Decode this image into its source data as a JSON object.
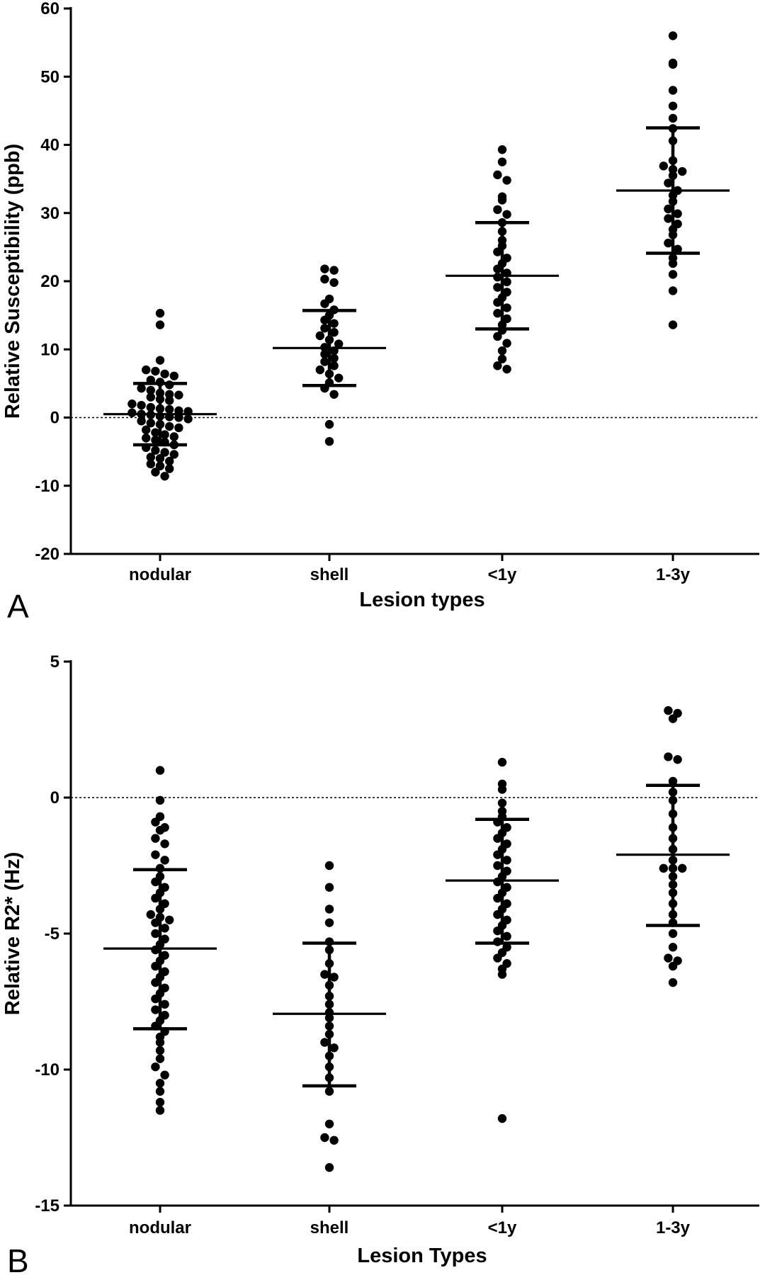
{
  "chart_data": [
    {
      "type": "scatter",
      "panel_label": "A",
      "xlabel": "Lesion types",
      "ylabel": "Relative Susceptibility (ppb)",
      "categories": [
        "nodular",
        "shell",
        "<1y",
        "1-3y"
      ],
      "ylim": [
        -20,
        60
      ],
      "yticks": [
        "60",
        "50",
        "40",
        "30",
        "20",
        "10",
        "0",
        "-10",
        "-20"
      ],
      "reference_line": 0,
      "series": [
        {
          "category": "nodular",
          "mean": 0.5,
          "sd_upper": 5.0,
          "sd_lower": -4.0,
          "points": [
            15.3,
            13.6,
            8.4,
            7.0,
            6.8,
            6.4,
            6.1,
            5.5,
            5.2,
            4.8,
            4.3,
            4.0,
            3.6,
            3.4,
            3.3,
            3.0,
            2.7,
            2.5,
            2.0,
            1.8,
            1.5,
            1.3,
            1.2,
            1.0,
            0.9,
            0.7,
            0.5,
            0.4,
            0.2,
            0.1,
            0.0,
            -0.2,
            -0.5,
            -0.8,
            -1.0,
            -1.3,
            -1.5,
            -1.8,
            -2.2,
            -2.5,
            -2.8,
            -3.0,
            -3.3,
            -3.6,
            -4.0,
            -4.4,
            -4.8,
            -5.1,
            -5.4,
            -5.8,
            -6.0,
            -6.4,
            -6.8,
            -7.1,
            -7.5,
            -8.0,
            -8.6
          ]
        },
        {
          "category": "shell",
          "mean": 10.2,
          "sd_upper": 15.7,
          "sd_lower": 4.7,
          "points": [
            21.8,
            21.6,
            20.3,
            19.8,
            17.4,
            16.7,
            15.8,
            15.0,
            14.3,
            13.8,
            13.1,
            12.5,
            12.0,
            11.4,
            10.8,
            10.3,
            9.8,
            9.3,
            8.7,
            8.2,
            7.6,
            7.0,
            6.4,
            5.8,
            5.1,
            4.3,
            3.4,
            -1.0,
            -3.5
          ]
        },
        {
          "category": "<1y",
          "mean": 20.8,
          "sd_upper": 28.6,
          "sd_lower": 13.0,
          "points": [
            39.3,
            37.5,
            35.6,
            34.8,
            32.4,
            31.9,
            30.5,
            29.8,
            28.6,
            27.3,
            26.0,
            25.2,
            24.3,
            23.4,
            22.6,
            21.8,
            21.2,
            20.6,
            19.9,
            19.1,
            18.4,
            17.6,
            16.9,
            16.1,
            15.3,
            14.5,
            13.6,
            12.8,
            11.9,
            10.9,
            9.8,
            8.6,
            7.6,
            7.1
          ]
        },
        {
          "category": "1-3y",
          "mean": 33.3,
          "sd_upper": 42.5,
          "sd_lower": 24.1,
          "points": [
            56.0,
            52.0,
            51.8,
            48.0,
            45.7,
            43.9,
            42.4,
            40.6,
            37.7,
            36.9,
            36.4,
            36.1,
            35.5,
            34.4,
            33.3,
            32.6,
            31.7,
            30.6,
            29.9,
            29.2,
            28.4,
            27.6,
            26.8,
            25.6,
            24.7,
            23.4,
            22.6,
            21.0,
            18.6,
            13.6
          ]
        }
      ]
    },
    {
      "type": "scatter",
      "panel_label": "B",
      "xlabel": "Lesion Types",
      "ylabel": "Relative R2* (Hz)",
      "categories": [
        "nodular",
        "shell",
        "<1y",
        "1-3y"
      ],
      "ylim": [
        -15,
        5
      ],
      "yticks": [
        "5",
        "0",
        "-5",
        "-10",
        "-15"
      ],
      "reference_line": 0,
      "series": [
        {
          "category": "nodular",
          "mean": -5.55,
          "sd_upper": -2.65,
          "sd_lower": -8.5,
          "points": [
            1.0,
            -0.1,
            -0.7,
            -0.9,
            -1.1,
            -1.2,
            -1.5,
            -1.7,
            -2.1,
            -2.3,
            -2.6,
            -2.9,
            -3.1,
            -3.3,
            -3.5,
            -3.7,
            -3.9,
            -4.1,
            -4.3,
            -4.4,
            -4.5,
            -4.6,
            -4.8,
            -5.0,
            -5.2,
            -5.4,
            -5.6,
            -5.8,
            -6.0,
            -6.2,
            -6.4,
            -6.6,
            -6.8,
            -7.0,
            -7.2,
            -7.4,
            -7.6,
            -7.8,
            -8.0,
            -8.2,
            -8.4,
            -8.6,
            -8.8,
            -9.0,
            -9.3,
            -9.6,
            -9.9,
            -10.2,
            -10.5,
            -10.8,
            -11.2,
            -11.5
          ]
        },
        {
          "category": "shell",
          "mean": -7.95,
          "sd_upper": -5.35,
          "sd_lower": -10.6,
          "points": [
            -2.5,
            -3.3,
            -4.1,
            -4.6,
            -5.3,
            -5.6,
            -6.1,
            -6.5,
            -6.6,
            -6.9,
            -7.3,
            -7.6,
            -7.9,
            -8.1,
            -8.4,
            -8.7,
            -9.0,
            -9.2,
            -9.5,
            -9.9,
            -10.3,
            -10.8,
            -12.0,
            -12.5,
            -12.6,
            -13.6
          ]
        },
        {
          "category": "<1y",
          "mean": -3.05,
          "sd_upper": -0.8,
          "sd_lower": -5.35,
          "points": [
            1.3,
            0.5,
            0.3,
            -0.2,
            -0.5,
            -0.7,
            -0.9,
            -1.1,
            -1.3,
            -1.5,
            -1.7,
            -1.9,
            -2.1,
            -2.3,
            -2.5,
            -2.7,
            -2.9,
            -3.1,
            -3.3,
            -3.5,
            -3.7,
            -3.9,
            -4.1,
            -4.3,
            -4.5,
            -4.7,
            -4.9,
            -5.1,
            -5.3,
            -5.5,
            -5.7,
            -5.9,
            -6.1,
            -6.3,
            -6.5,
            -11.8
          ]
        },
        {
          "category": "1-3y",
          "mean": -2.1,
          "sd_upper": 0.45,
          "sd_lower": -4.7,
          "points": [
            3.2,
            3.1,
            2.9,
            1.5,
            1.4,
            0.6,
            0.2,
            -0.1,
            -0.6,
            -1.1,
            -1.5,
            -1.9,
            -2.3,
            -2.6,
            -2.6,
            -2.6,
            -2.9,
            -3.2,
            -3.5,
            -3.9,
            -4.3,
            -4.6,
            -5.0,
            -5.5,
            -5.9,
            -6.0,
            -6.2,
            -6.8
          ]
        }
      ]
    }
  ]
}
